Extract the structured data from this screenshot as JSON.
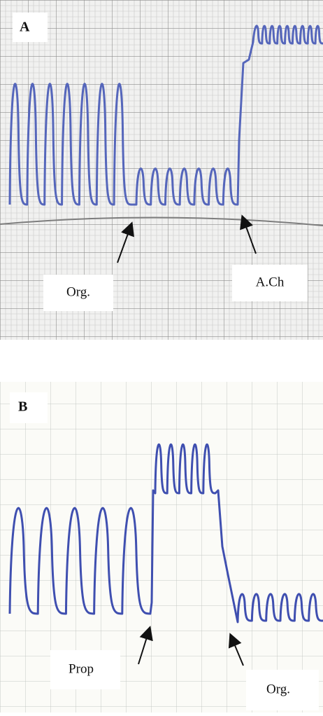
{
  "panels": [
    {
      "label": "A",
      "annotations": [
        "Org.",
        "A.Ch"
      ]
    },
    {
      "label": "B",
      "annotations": [
        "Prop",
        "Org."
      ]
    }
  ]
}
